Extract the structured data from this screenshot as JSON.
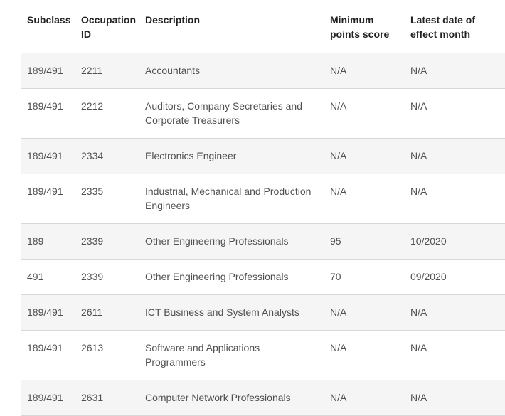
{
  "table": {
    "headers": {
      "subclass": "Subclass",
      "occupation_id": "Occupation ID",
      "description": "Description",
      "min_points": "Minimum points score",
      "latest_date": "Latest date of effect month"
    },
    "rows": [
      {
        "subclass": "189/491",
        "occupation_id": "2211",
        "description": "Accountants",
        "min_points": "N/A",
        "latest_date": "N/A"
      },
      {
        "subclass": "189/491",
        "occupation_id": "2212",
        "description": "Auditors, Company Secretaries and Corporate Treasurers",
        "min_points": "N/A",
        "latest_date": "N/A"
      },
      {
        "subclass": "189/491",
        "occupation_id": "2334",
        "description": "Electronics Engineer",
        "min_points": "N/A",
        "latest_date": "N/A"
      },
      {
        "subclass": "189/491",
        "occupation_id": "2335",
        "description": "Industrial, Mechanical and Production Engineers",
        "min_points": "N/A",
        "latest_date": "N/A"
      },
      {
        "subclass": "189",
        "occupation_id": "2339",
        "description": "Other Engineering Professionals",
        "min_points": "95",
        "latest_date": "10/2020"
      },
      {
        "subclass": "491",
        "occupation_id": "2339",
        "description": "Other Engineering Professionals",
        "min_points": "70",
        "latest_date": "09/2020"
      },
      {
        "subclass": "189/491",
        "occupation_id": "2611",
        "description": "ICT Business and System Analysts",
        "min_points": "N/A",
        "latest_date": "N/A"
      },
      {
        "subclass": "189/491",
        "occupation_id": "2613",
        "description": "Software and Applications Programmers",
        "min_points": "N/A",
        "latest_date": "N/A"
      },
      {
        "subclass": "189/491",
        "occupation_id": "2631",
        "description": "Computer Network Professionals",
        "min_points": "N/A",
        "latest_date": "N/A"
      }
    ]
  }
}
